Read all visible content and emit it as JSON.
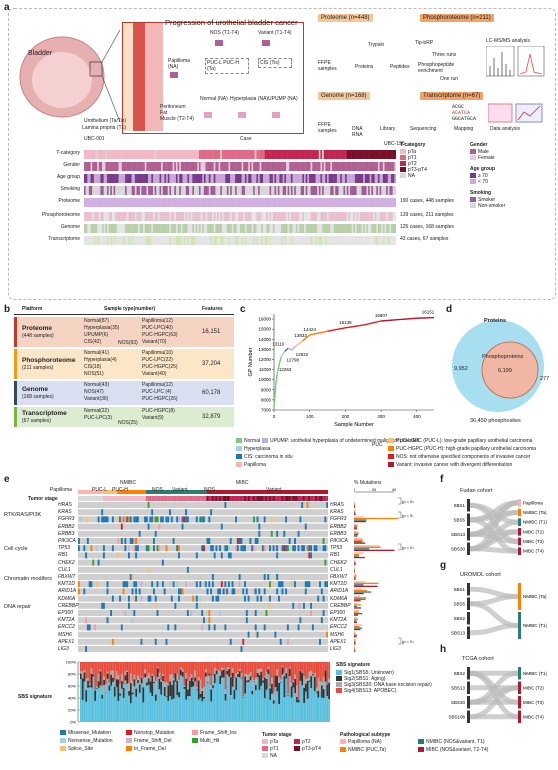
{
  "panels": {
    "a": "a",
    "b": "b",
    "c": "c",
    "d": "d",
    "e": "e",
    "f": "f",
    "g": "g",
    "h": "h"
  },
  "panel_a": {
    "progression_title": "Progression of urothelial bladder cancer",
    "bladder": "Bladder",
    "layers": [
      "Urothelium (Ta/Tis)",
      "Lamina propria (T1)"
    ],
    "tissue_labels": [
      "Peritoneum",
      "Fat",
      "Muscle (T2-T4)"
    ],
    "stages": [
      {
        "label": "NOS (T1-T4)"
      },
      {
        "label": "Variant (T1-T4)"
      },
      {
        "label": "Papilloma (NA)"
      },
      {
        "label": "PUC-L PUC-H (Ta)"
      },
      {
        "label": "CIS (Tis)"
      },
      {
        "label": "Normal (NA)"
      },
      {
        "label": "Hyperplasia (NA)"
      },
      {
        "label": "UPUMP (NA)"
      }
    ],
    "omics": [
      {
        "label": "Proteome (n=448)",
        "color": "#f2c79a"
      },
      {
        "label": "Phosphoroteome (n=211)",
        "color": "#f0a46a"
      },
      {
        "label": "Genome (n=168)",
        "color": "#f2c79a"
      },
      {
        "label": "Transcriptome (n=67)",
        "color": "#f0a46a"
      }
    ],
    "workflow": {
      "proteome": [
        "FFPE samples",
        "Proteins",
        "Trypsin",
        "Peptides",
        "Tip-bRP",
        "Three runs",
        "Phosphopeptide enrichment",
        "One run",
        "LC-MS/MS analysis"
      ],
      "genome": [
        "FFPE samples",
        "DNA RNA",
        "Library",
        "Sequencing",
        "Mapping",
        "Data analysis"
      ],
      "seq": [
        "ACGC",
        "ACATCA",
        "GGCATGCA"
      ]
    },
    "case_axis": {
      "left": "UBC-001",
      "center": "Case",
      "right": "UBC-190"
    },
    "tracks": [
      "T-category",
      "Gender",
      "Age group",
      "Smoking",
      "Proteome",
      "Phosphoroteome",
      "Genome",
      "Transcriptome"
    ],
    "track_counts": [
      "190 cases, 448 samples",
      "139 cases, 211 samples",
      "125 cases, 168 samples",
      "43 cases, 67 samples"
    ],
    "legend": {
      "tcat_title": "T-category",
      "tcat": [
        {
          "label": "pTa",
          "color": "#f2b8c6"
        },
        {
          "label": "pT1",
          "color": "#e06a86"
        },
        {
          "label": "pT2",
          "color": "#c2264f"
        },
        {
          "label": "pT3-pT4",
          "color": "#7a0f2a"
        },
        {
          "label": "NA",
          "color": "#d8d8d8"
        }
      ],
      "gender_title": "Gender",
      "gender": [
        {
          "label": "Male",
          "color": "#b06090"
        },
        {
          "label": "Female",
          "color": "#e8c8dc"
        }
      ],
      "age_title": "Age group",
      "age": [
        {
          "label": "≥ 70",
          "color": "#7a3a8a"
        },
        {
          "label": "< 70",
          "color": "#c8a8d8"
        }
      ],
      "smoke_title": "Smoking",
      "smoke": [
        {
          "label": "Smoker",
          "color": "#a05a9a"
        },
        {
          "label": "Non-smoker",
          "color": "#d8d8d8"
        }
      ]
    }
  },
  "panel_b": {
    "headers": [
      "Platform",
      "Sample type(number)",
      "Features"
    ],
    "rows": [
      {
        "platform": "Proteome",
        "sub": "(448 samples)",
        "color": "#f6d4c4",
        "bar": "#c0392b",
        "left": [
          "Normal(87)",
          "Hyperplasia(35)",
          "UPUMP(6)",
          "CIS(42)"
        ],
        "right": [
          "Papilloma(12)",
          "PUC-LPC(40)",
          "PUC-HGPC(63)",
          "Variant(70)"
        ],
        "mid": "NOS(93)",
        "features": "16,151"
      },
      {
        "platform": "Phosphoroteome",
        "sub": "(211 samples)",
        "color": "#fbe6c8",
        "bar": "#f39c12",
        "left": [
          "Normal(41)",
          "Hyperplasia(4)",
          "CIS(18)",
          "NOS(51)"
        ],
        "right": [
          "Papilloma(10)",
          "PUC-LPC(22)",
          "PUC-HGPC(25)",
          "Variant(40)"
        ],
        "mid": "",
        "features": "37,204"
      },
      {
        "platform": "Genome",
        "sub": "(168 samples)",
        "color": "#d9dff0",
        "bar": "#34495e",
        "left": [
          "Normal(43)",
          "NOS(47)",
          "Variant(36)"
        ],
        "right": [
          "Papilloma(12)",
          "PUC-LPC (4)",
          "PUC-HGPC(26)"
        ],
        "mid": "",
        "features": "60,178"
      },
      {
        "platform": "Transcriptome",
        "sub": "(67 samples)",
        "color": "#dcecd0",
        "bar": "#7cb342",
        "left": [
          "Normal(22)",
          "PUC-LPC(3)"
        ],
        "right": [
          "PUC-HGPC(8)",
          "Variant(9)"
        ],
        "mid": "NOS(25)",
        "features": "32,879"
      }
    ]
  },
  "panel_c": {
    "ylabel": "GP Number",
    "xlabel": "Sample Number",
    "yticks": [
      "16000",
      "15000",
      "14000",
      "13000",
      "12000",
      "11000",
      "10000",
      "9000",
      "8000",
      "7000"
    ],
    "xticks": [
      "0",
      "100",
      "200",
      "300",
      "400"
    ],
    "annotations": [
      "12263",
      "12798",
      "13110",
      "12922",
      "13833",
      "14424",
      "15138",
      "15807",
      "16151"
    ]
  },
  "chart_data": {
    "type": "line",
    "x": [
      0,
      5,
      10,
      20,
      30,
      40,
      50,
      60,
      80,
      100,
      150,
      200,
      250,
      300,
      350,
      400,
      448
    ],
    "y": [
      7200,
      9500,
      10800,
      12263,
      12798,
      13110,
      12922,
      13300,
      13833,
      14424,
      14800,
      15138,
      15400,
      15807,
      15950,
      16080,
      16151
    ],
    "xlabel": "Sample Number",
    "ylabel": "GP Number",
    "xlim": [
      0,
      448
    ],
    "ylim": [
      7000,
      16500
    ]
  },
  "panel_d": {
    "outer": "Proteins",
    "inner": "Phosphoproteins",
    "left": "9,952",
    "center": "6,199",
    "right": "277",
    "bottom": "36,450 phosphosites"
  },
  "legend_bc": {
    "items": [
      {
        "label": "Normal",
        "color": "#7fc97f"
      },
      {
        "label": "UPUMP: urothelial hyperplasia of undetermined malignant potential",
        "color": "#beaed4"
      },
      {
        "label": "Hyperplasia",
        "color": "#a6cee3"
      },
      {
        "label": "CIS: carcinoma in situ",
        "color": "#1f78b4"
      },
      {
        "label": "Papilloma",
        "color": "#fbb4ae"
      },
      {
        "label": "PUC-LGPC (PUC-L): low-grade papillary urothelial carcinoma",
        "color": "#fdbf6f"
      },
      {
        "label": "PUC-HGPC (PUC-H): high-grade papillary urothelial carcinoma",
        "color": "#ff7f00"
      },
      {
        "label": "NOS: not otherwise specified components of invasive cancer",
        "color": "#e31a1c"
      },
      {
        "label": "Variant: invasive cancer with divergent differentiation",
        "color": "#b2182b"
      }
    ],
    "puc": "PUC"
  },
  "panel_e": {
    "groups": [
      {
        "label": "Papilloma"
      },
      {
        "label": "PUC-L"
      },
      {
        "label": "PUC-H"
      },
      {
        "label": "NOS"
      },
      {
        "label": "Variant"
      },
      {
        "label": "NOS"
      },
      {
        "label": "Variant"
      }
    ],
    "super": [
      "NMIBC",
      "MIBC"
    ],
    "tumor_stage": "Tumor stage",
    "pathways": [
      "RTK/RAS/PI3K",
      "Cell cycle",
      "Chromatin modifers",
      "DNA repair"
    ],
    "genes": [
      "HRAS",
      "KRAS",
      "FGFR3",
      "ERBB2",
      "ERBB3",
      "PIK3CA",
      "TP53",
      "RB1",
      "CHEK2",
      "CUL1",
      "FBXW7",
      "KMT2D",
      "ARID1A",
      "KDM6A",
      "CREBBP",
      "EP300",
      "KMT2A",
      "ERCC2",
      "MSH6",
      "APEX1",
      "LIG3"
    ],
    "pct_title": "% Mutations",
    "pct_ticks": [
      "0",
      "20",
      "40"
    ],
    "pvals": [
      "(p = 5.0E-5)",
      "(p = 5.3E-4)",
      "(p = 0.035)",
      "(p = 0.034)"
    ],
    "sbs_title": "SBS signature",
    "sbs_label": "SBS signature",
    "sbs_ticks": [
      "100%",
      "80%",
      "60%",
      "40%",
      "20%",
      "0%"
    ],
    "sbs_legend": [
      {
        "label": "Sig1(SBS5: Unknown)",
        "color": "#5bc0de"
      },
      {
        "label": "Sig2(SBS1: Aging)",
        "color": "#333333"
      },
      {
        "label": "Sig3(SBS30: DNA base excision repair)",
        "color": "#aaaaaa"
      },
      {
        "label": "Sig4(SBS13: APOBEC)",
        "color": "#e74c3c"
      }
    ],
    "mut_legend": [
      {
        "label": "Missense_Mutation",
        "color": "#1f78b4"
      },
      {
        "label": "Nonstop_Mutation",
        "color": "#e31a1c"
      },
      {
        "label": "Frame_Shift_Ins",
        "color": "#fb9a99"
      },
      {
        "label": "Nonsense_Mutation",
        "color": "#a6cee3"
      },
      {
        "label": "Frame_Shift_Del",
        "color": "#cab2d6"
      },
      {
        "label": "Multi_Hit",
        "color": "#33a02c"
      },
      {
        "label": "Splice_Site",
        "color": "#fdbf6f"
      },
      {
        "label": "In_Frame_Del",
        "color": "#ff7f00"
      }
    ],
    "stage_legend_title": "Tumor stage",
    "stage_legend": [
      {
        "label": "pTa",
        "color": "#f2b8c6"
      },
      {
        "label": "pT2",
        "color": "#c2264f"
      },
      {
        "label": "pT1",
        "color": "#e06a86"
      },
      {
        "label": "pT3-pT4",
        "color": "#7a0f2a"
      },
      {
        "label": "NA",
        "color": "#d8d8d8"
      }
    ],
    "path_legend_title": "Pathological subtype",
    "path_legend": [
      {
        "label": "Papilloma (NA)",
        "color": "#fbb4ae"
      },
      {
        "label": "NMIBC (NOS&variant, T1)",
        "color": "#2a7d6f"
      },
      {
        "label": "NMIBC (PUC,Ta)",
        "color": "#ff7f00"
      },
      {
        "label": "MIBC (NOS&variant, T2-T4)",
        "color": "#b2182b"
      }
    ]
  },
  "panel_f": {
    "title": "Fudan cohort",
    "left": [
      "SBS1",
      "SBS5",
      "SBS13",
      "SBS30"
    ],
    "right": [
      "Papilloma",
      "NMIBC (Ta)",
      "NMIBC (T1)",
      "MIBC (T2)",
      "MIBC (T3)",
      "MIBC (T4)"
    ]
  },
  "panel_g": {
    "title": "UROMOL cohort",
    "left": [
      "SBS1",
      "SBS5",
      "SBS2",
      "SBS13"
    ],
    "right": [
      "NMIBC (Ta)",
      "NMIBC (T1)"
    ]
  },
  "panel_h": {
    "title": "TCGA cohort",
    "left": [
      "SBS2",
      "SBS13",
      "SBS30",
      "SBS10b"
    ],
    "right": [
      "NMIBC (T1)",
      "MIBC (T2)",
      "MIBC (T3)",
      "MIBC (T4)"
    ]
  }
}
